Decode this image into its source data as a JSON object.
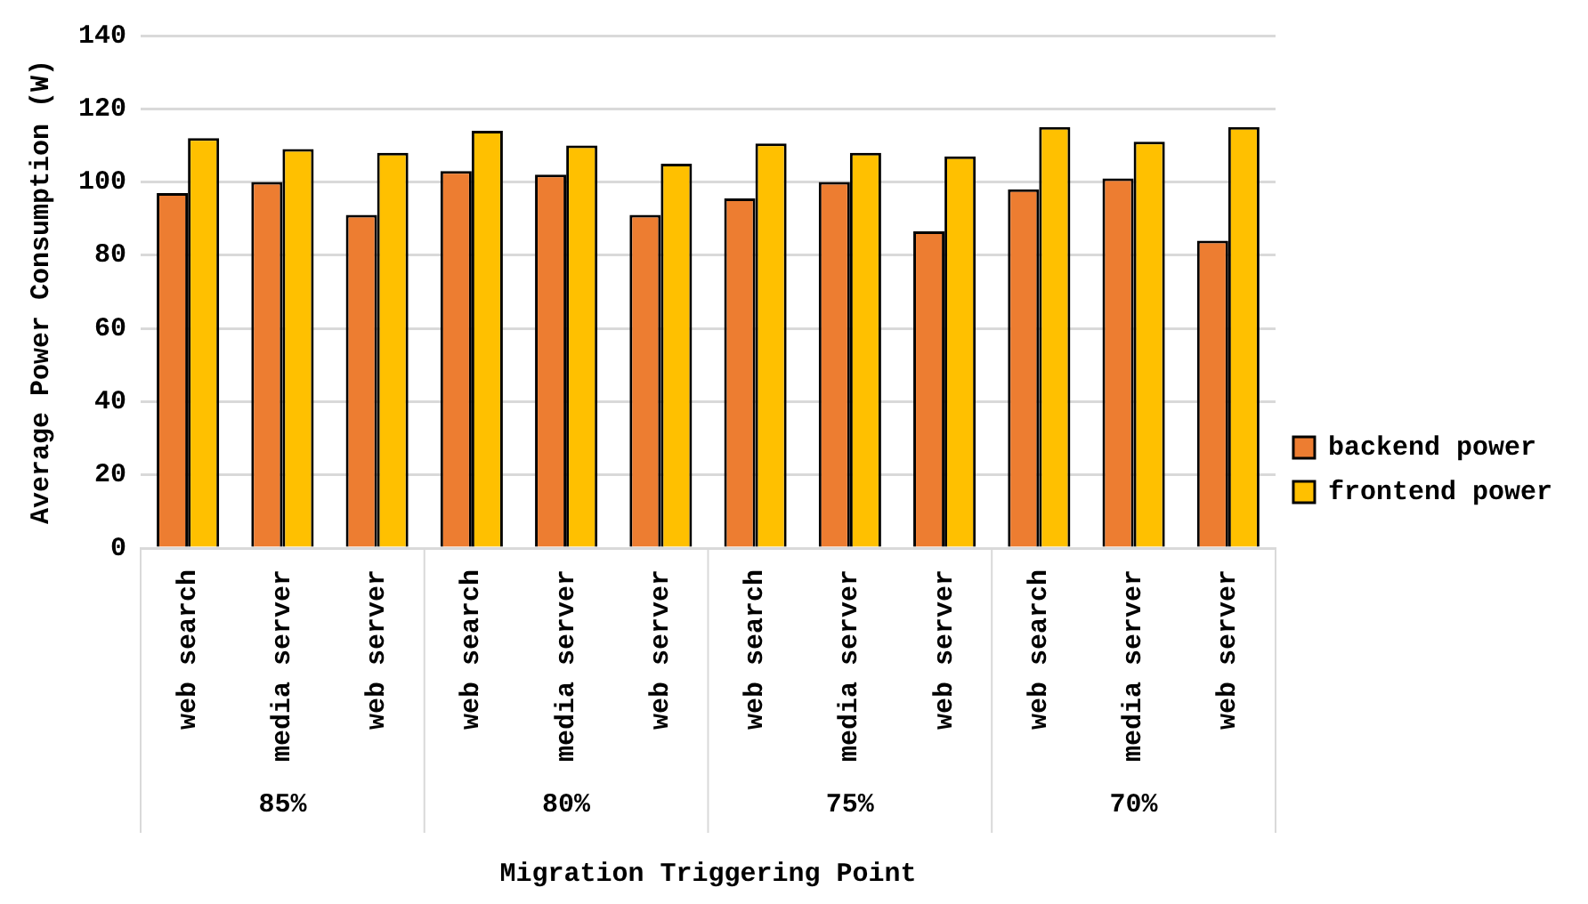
{
  "chart_data": {
    "type": "bar",
    "ylabel": "Average Power Consumption (W)",
    "xlabel": "Migration Triggering Point",
    "categories": [
      "web search",
      "media server",
      "web server",
      "web search",
      "media server",
      "web server",
      "web search",
      "media server",
      "web server",
      "web search",
      "media server",
      "web server"
    ],
    "series": [
      {
        "name": "backend power",
        "color": "#ed7d31",
        "values": [
          97,
          100,
          91,
          103,
          102,
          91,
          95.5,
          100,
          86.5,
          98,
          101,
          84
        ]
      },
      {
        "name": "frontend power",
        "color": "#ffc000",
        "values": [
          112,
          109,
          108,
          114,
          110,
          105,
          110.5,
          108,
          107,
          115,
          111,
          115
        ]
      }
    ],
    "annotations": [
      "85%",
      "80%",
      "75%",
      "70%"
    ],
    "ylim": [
      0,
      140
    ],
    "yticks": [
      0,
      20,
      40,
      60,
      80,
      100,
      120,
      140
    ],
    "grid": "y",
    "legend": "right"
  }
}
